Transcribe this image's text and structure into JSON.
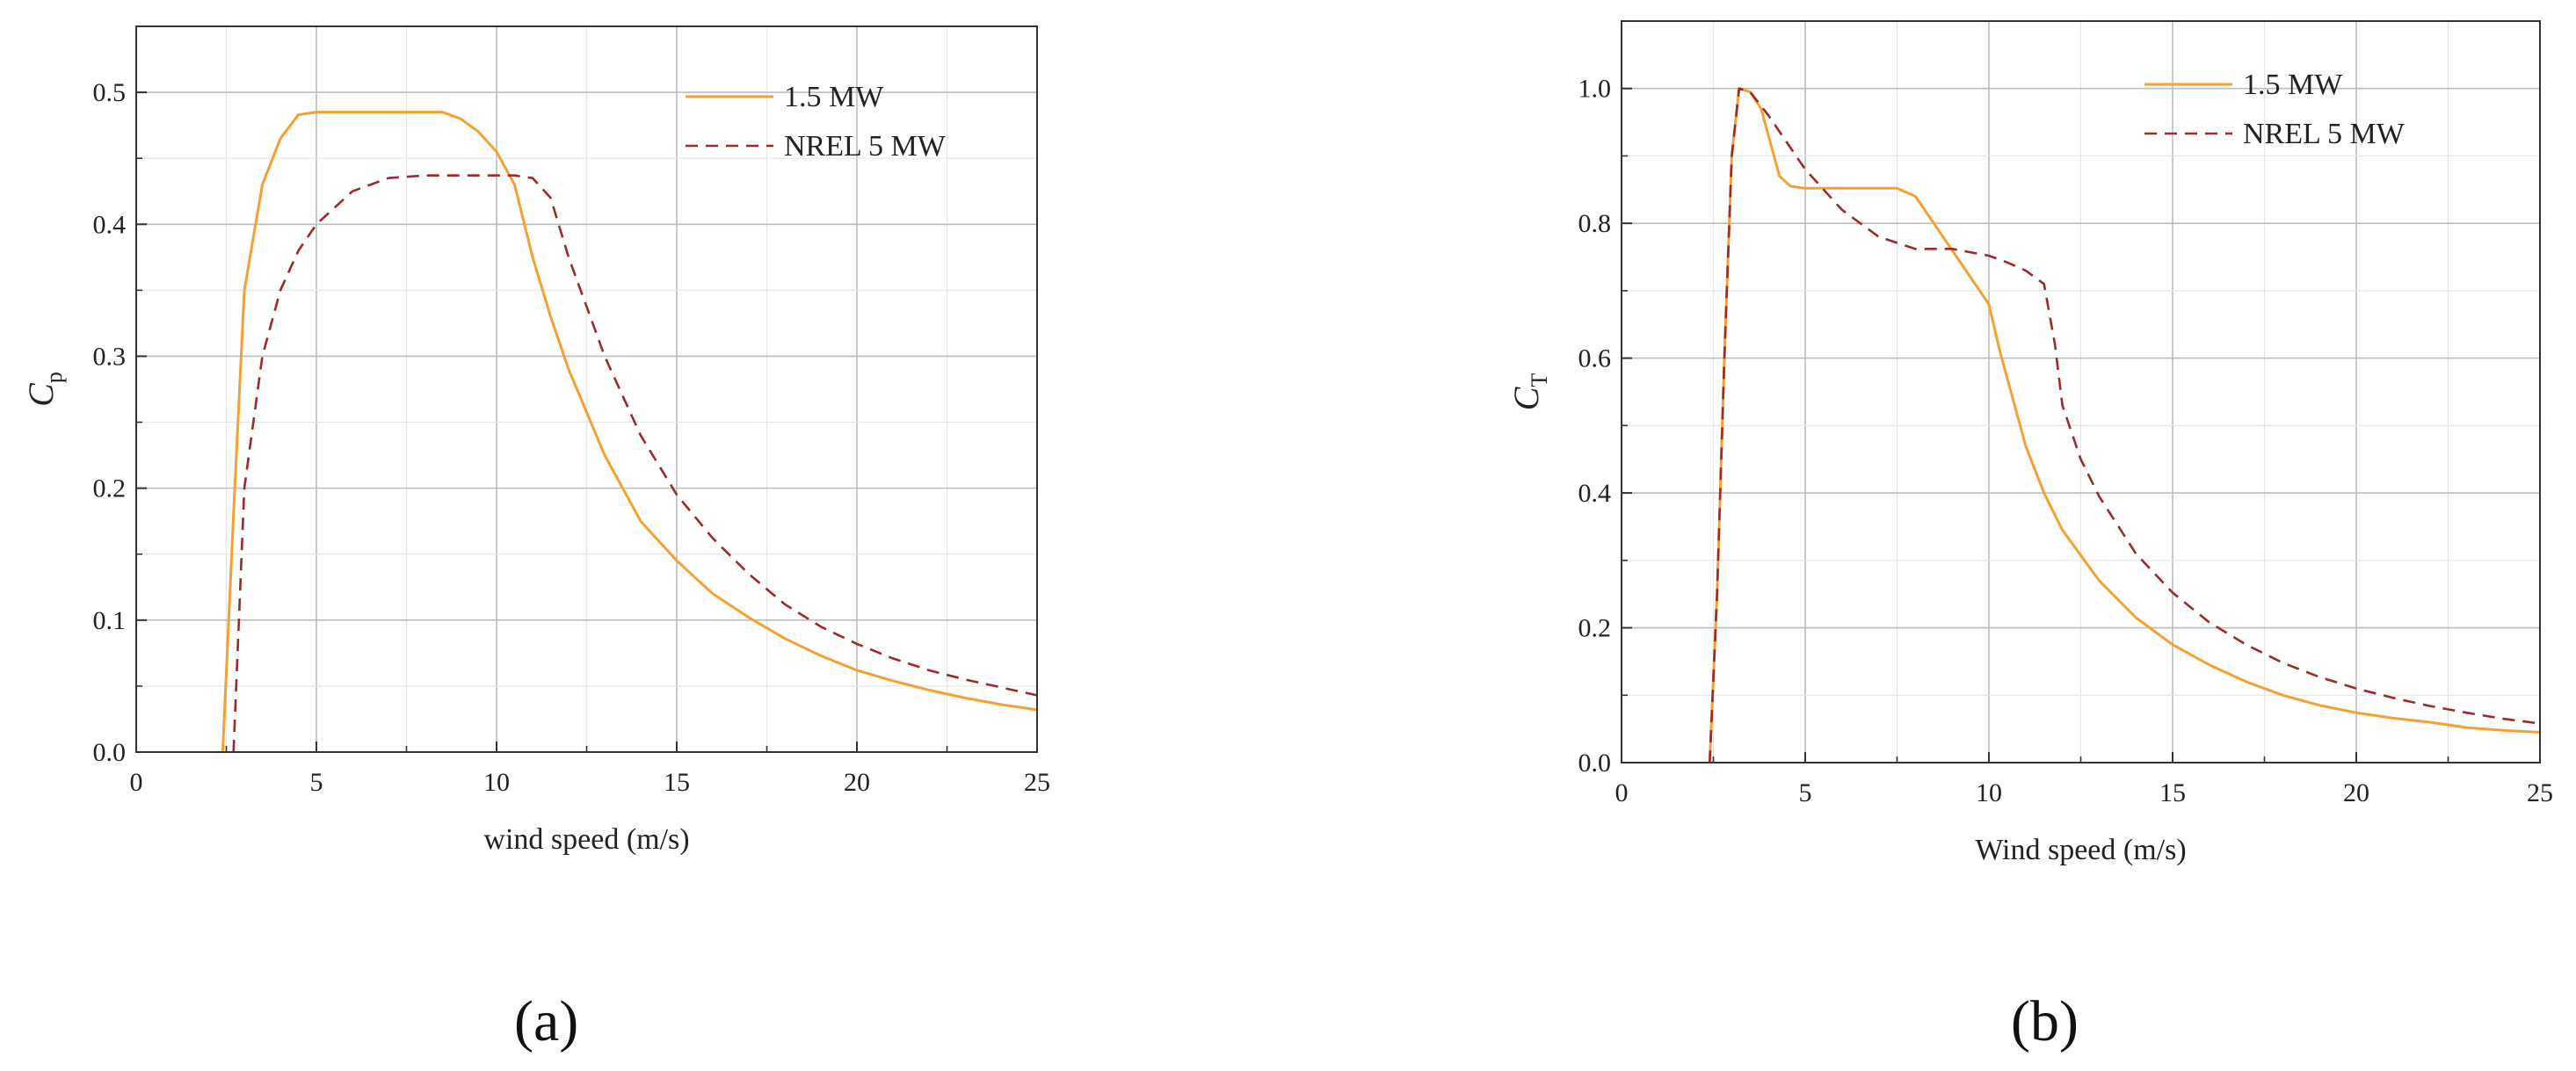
{
  "panels": [
    {
      "label": "(a)",
      "chart_data": {
        "type": "line",
        "xlabel": "wind speed (m/s)",
        "ylabel_main": "C",
        "ylabel_sub": "p",
        "xlim": [
          0,
          25
        ],
        "ylim": [
          0,
          0.55
        ],
        "xticks": [
          0,
          5,
          10,
          15,
          20,
          25
        ],
        "yticks": [
          0.0,
          0.1,
          0.2,
          0.3,
          0.4,
          0.5
        ],
        "ytick_labels": [
          "0.0",
          "0.1",
          "0.2",
          "0.3",
          "0.4",
          "0.5"
        ],
        "grid": true,
        "legend": "top-right",
        "series": [
          {
            "name": "1.5 MW",
            "color": "#F5A032",
            "dash": "solid",
            "x": [
              2.4,
              2.7,
              3.0,
              3.5,
              4.0,
              4.5,
              5.0,
              6,
              7,
              8,
              8.5,
              9,
              9.5,
              10,
              10.5,
              11,
              11.5,
              12,
              13,
              14,
              15,
              16,
              17,
              18,
              19,
              20,
              21,
              22,
              23,
              24,
              25
            ],
            "y": [
              0.0,
              0.18,
              0.35,
              0.43,
              0.465,
              0.483,
              0.485,
              0.485,
              0.485,
              0.485,
              0.485,
              0.48,
              0.47,
              0.455,
              0.43,
              0.375,
              0.33,
              0.29,
              0.225,
              0.175,
              0.145,
              0.12,
              0.102,
              0.086,
              0.073,
              0.062,
              0.054,
              0.047,
              0.041,
              0.036,
              0.032
            ]
          },
          {
            "name": "NREL 5 MW",
            "color": "#9B2A2A",
            "dash": "dashed",
            "x": [
              2.7,
              3.0,
              3.5,
              4.0,
              4.5,
              5.0,
              6,
              7,
              8,
              9,
              10,
              10.5,
              11,
              11.5,
              12,
              13,
              14,
              15,
              16,
              17,
              18,
              19,
              20,
              21,
              22,
              23,
              24,
              25
            ],
            "y": [
              0.0,
              0.2,
              0.3,
              0.35,
              0.38,
              0.4,
              0.425,
              0.435,
              0.437,
              0.437,
              0.437,
              0.437,
              0.435,
              0.42,
              0.375,
              0.3,
              0.24,
              0.195,
              0.162,
              0.135,
              0.112,
              0.095,
              0.082,
              0.071,
              0.062,
              0.055,
              0.049,
              0.043
            ]
          }
        ]
      }
    },
    {
      "label": "(b)",
      "chart_data": {
        "type": "line",
        "xlabel": "Wind speed (m/s)",
        "ylabel_main": "C",
        "ylabel_sub": "T",
        "xlim": [
          0,
          25
        ],
        "ylim": [
          0,
          1.1
        ],
        "xticks": [
          0,
          5,
          10,
          15,
          20,
          25
        ],
        "yticks": [
          0.0,
          0.2,
          0.4,
          0.6,
          0.8,
          1.0
        ],
        "ytick_labels": [
          "0.0",
          "0.2",
          "0.4",
          "0.6",
          "0.8",
          "1.0"
        ],
        "grid": true,
        "legend": "top-right",
        "series": [
          {
            "name": "1.5 MW",
            "color": "#F5A032",
            "dash": "solid",
            "x": [
              2.4,
              2.6,
              2.8,
              3.0,
              3.2,
              3.5,
              3.8,
              4.0,
              4.3,
              4.6,
              5.0,
              6,
              7,
              7.5,
              8,
              8.5,
              9,
              9.5,
              10,
              10.3,
              10.6,
              11,
              11.5,
              12,
              13,
              14,
              15,
              16,
              17,
              18,
              19,
              20,
              21,
              22,
              23,
              24,
              25
            ],
            "y": [
              0.0,
              0.25,
              0.6,
              0.9,
              1.0,
              0.995,
              0.97,
              0.93,
              0.87,
              0.855,
              0.852,
              0.852,
              0.852,
              0.852,
              0.84,
              0.8,
              0.76,
              0.72,
              0.68,
              0.61,
              0.55,
              0.47,
              0.4,
              0.345,
              0.27,
              0.215,
              0.175,
              0.145,
              0.12,
              0.1,
              0.085,
              0.074,
              0.066,
              0.06,
              0.052,
              0.048,
              0.045
            ]
          },
          {
            "name": "NREL 5 MW",
            "color": "#9B2A2A",
            "dash": "dashed",
            "x": [
              2.4,
              2.6,
              2.8,
              3.0,
              3.2,
              3.5,
              4.0,
              4.5,
              5.0,
              6,
              7,
              8,
              9,
              10,
              10.5,
              11,
              11.5,
              11.8,
              12,
              12.5,
              13,
              14,
              15,
              16,
              17,
              18,
              19,
              20,
              21,
              22,
              23,
              24,
              25
            ],
            "y": [
              0.0,
              0.25,
              0.6,
              0.9,
              1.0,
              0.995,
              0.96,
              0.92,
              0.88,
              0.82,
              0.78,
              0.762,
              0.762,
              0.752,
              0.742,
              0.73,
              0.71,
              0.62,
              0.53,
              0.45,
              0.395,
              0.31,
              0.252,
              0.208,
              0.175,
              0.148,
              0.127,
              0.11,
              0.096,
              0.084,
              0.074,
              0.065,
              0.058
            ]
          }
        ]
      }
    }
  ]
}
